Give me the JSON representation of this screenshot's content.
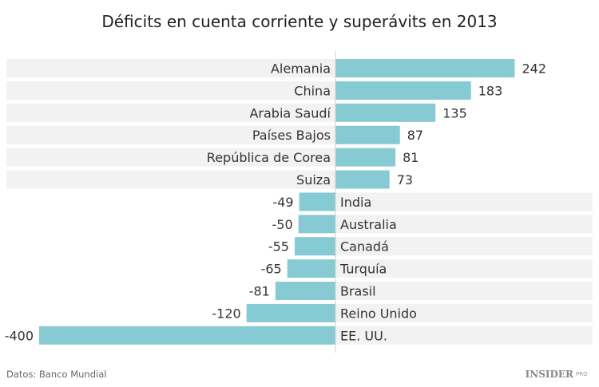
{
  "chart_data": {
    "type": "bar",
    "orientation": "horizontal",
    "title": "Déficits en cuenta corriente y superávits en 2013",
    "categories": [
      "Alemania",
      "China",
      "Arabia Saudí",
      "Países Bajos",
      "República de Corea",
      "Suiza",
      "India",
      "Australia",
      "Canadá",
      "Turquía",
      "Brasil",
      "Reino Unido",
      "EE. UU."
    ],
    "values": [
      242,
      183,
      135,
      87,
      81,
      73,
      -49,
      -50,
      -55,
      -65,
      -81,
      -120,
      -400
    ],
    "xlim": [
      -400,
      345
    ],
    "grid": false,
    "data_labels": true,
    "bar_color": "#86cad3",
    "row_background_color": "#f2f2f2"
  },
  "source": "Datos: Banco Mundial",
  "logo": {
    "main": "INSIDER",
    "sub": "PRO"
  }
}
